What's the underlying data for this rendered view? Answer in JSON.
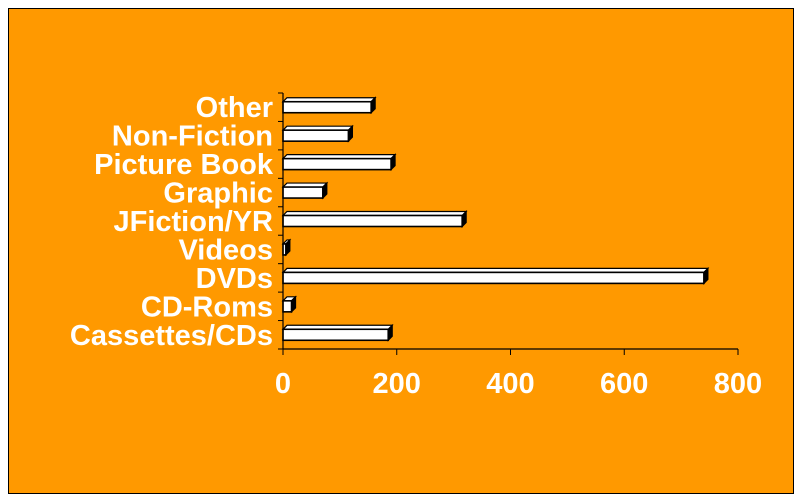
{
  "chart_data": {
    "type": "bar",
    "orientation": "horizontal",
    "title": "",
    "xlabel": "",
    "ylabel": "",
    "categories": [
      "Cassettes/CDs",
      "CD-Roms",
      "DVDs",
      "Videos",
      "JFiction/YR",
      "Graphic",
      "Picture Book",
      "Non-Fiction",
      "Other"
    ],
    "values": [
      185,
      15,
      740,
      5,
      315,
      70,
      190,
      115,
      155
    ],
    "xlim": [
      0,
      800
    ],
    "xticks": [
      "0",
      "200",
      "400",
      "600",
      "800"
    ],
    "grid": false,
    "legend": "none",
    "style": "3d"
  },
  "colors": {
    "background": "#FF9900",
    "bar_fill": "#FFFFFF",
    "bar_edge": "#000000",
    "text": "#FFFFFF",
    "axis": "#000000"
  }
}
